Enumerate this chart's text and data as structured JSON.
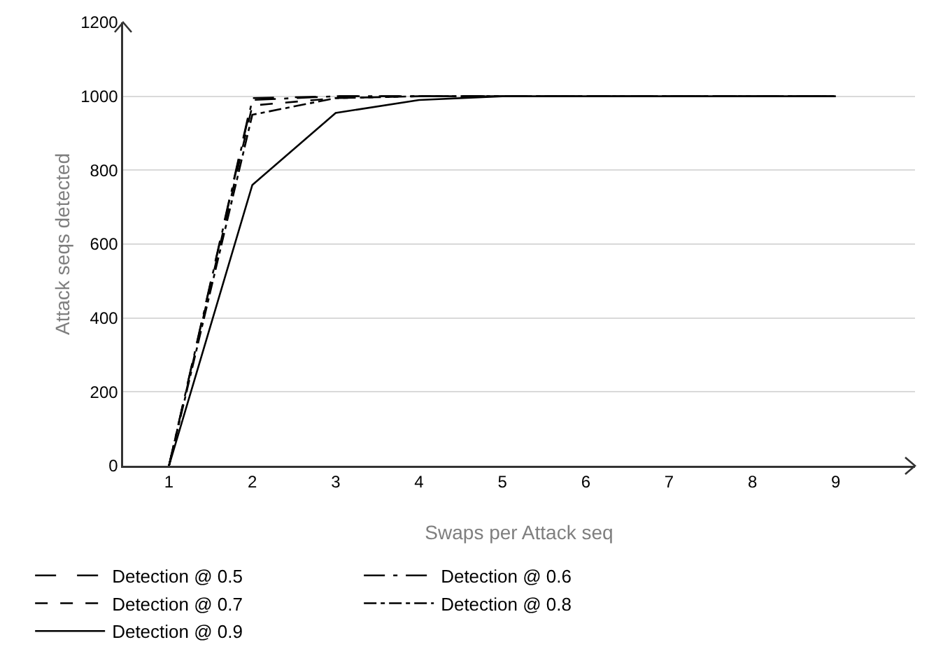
{
  "chart_data": {
    "type": "line",
    "xlabel": "Swaps per Attack seq",
    "ylabel": "Attack seqs detected",
    "categories": [
      "1",
      "2",
      "3",
      "4",
      "5",
      "6",
      "7",
      "8",
      "9"
    ],
    "series": [
      {
        "name": "Detection @ 0.5",
        "color": "#000000",
        "line_style": "long-dashed",
        "values": [
          0,
          995,
          1000,
          1000,
          1000,
          1000,
          1000,
          1000,
          1000
        ]
      },
      {
        "name": "Detection @ 0.6",
        "color": "#000000",
        "line_style": "long-dash-dot",
        "values": [
          0,
          990,
          1000,
          1000,
          1000,
          1000,
          1000,
          1000,
          1000
        ]
      },
      {
        "name": "Detection @ 0.7",
        "color": "#000000",
        "line_style": "dashed",
        "values": [
          0,
          975,
          995,
          1000,
          1000,
          1000,
          1000,
          1000,
          1000
        ]
      },
      {
        "name": "Detection @ 0.8",
        "color": "#000000",
        "line_style": "dash-dot",
        "values": [
          0,
          950,
          995,
          1000,
          1000,
          1000,
          1000,
          1000,
          1000
        ]
      },
      {
        "name": "Detection @ 0.9",
        "color": "#000000",
        "line_style": "solid",
        "values": [
          0,
          760,
          955,
          990,
          1000,
          1000,
          1000,
          1000,
          1000
        ]
      }
    ],
    "ylim": [
      0,
      1200
    ],
    "yticks": [
      0,
      200,
      400,
      600,
      800,
      1000,
      1200
    ],
    "grid": "y",
    "legend": "bottom",
    "marker": "none"
  }
}
